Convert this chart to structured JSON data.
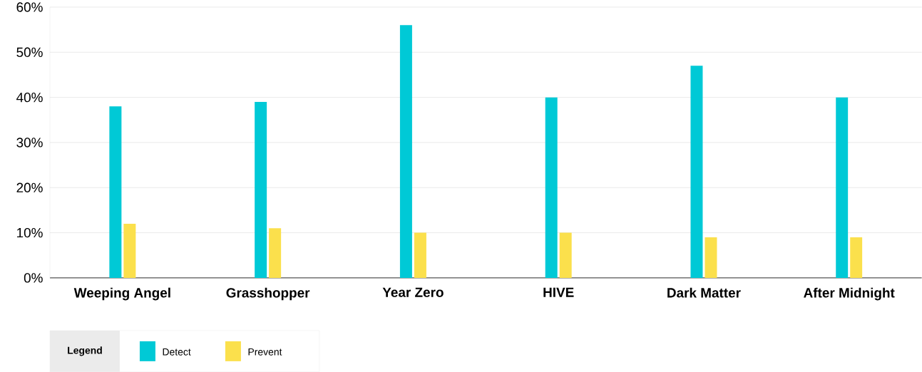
{
  "chart_data": {
    "type": "bar",
    "categories": [
      "Weeping Angel",
      "Grasshopper",
      "Year Zero",
      "HIVE",
      "Dark Matter",
      "After Midnight"
    ],
    "series": [
      {
        "name": "Detect",
        "color": "#00c9d6",
        "values": [
          38,
          39,
          56,
          40,
          47,
          40
        ]
      },
      {
        "name": "Prevent",
        "color": "#fbe04c",
        "values": [
          12,
          11,
          10,
          10,
          9,
          9
        ]
      }
    ],
    "ylim": [
      0,
      60
    ],
    "yticks": [
      {
        "value": 0,
        "label": "0%"
      },
      {
        "value": 10,
        "label": "10%"
      },
      {
        "value": 20,
        "label": "20%"
      },
      {
        "value": 30,
        "label": "30%"
      },
      {
        "value": 40,
        "label": "40%"
      },
      {
        "value": 50,
        "label": "50%"
      },
      {
        "value": 60,
        "label": "60%"
      }
    ],
    "grid": "y",
    "legend": "bottom left",
    "legend_title": "Legend"
  }
}
